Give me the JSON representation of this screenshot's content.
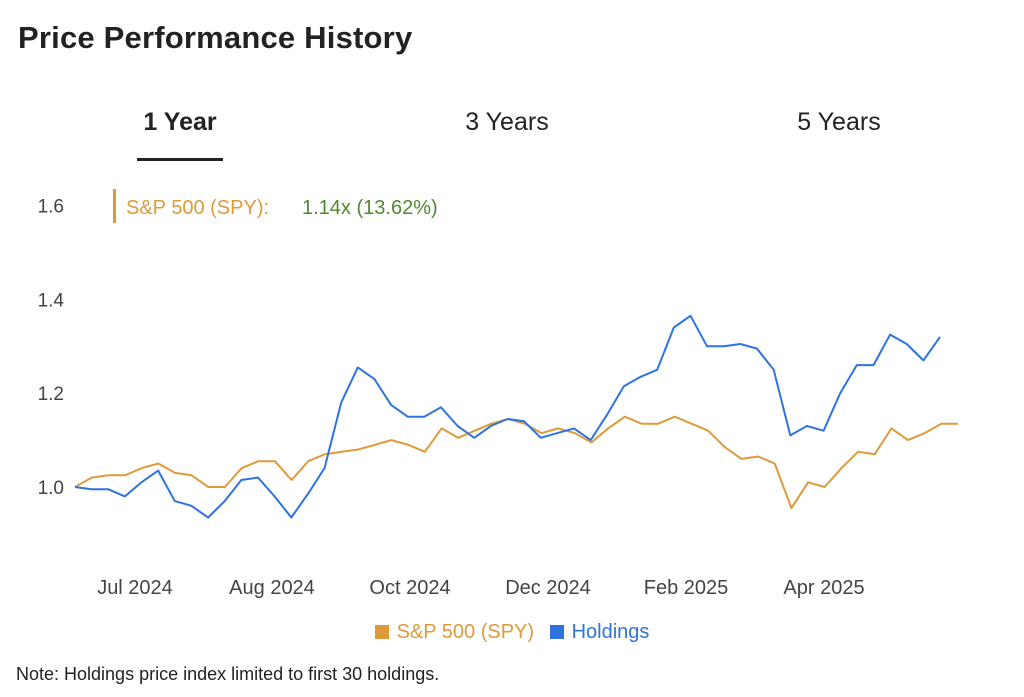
{
  "page": {
    "title": "Price Performance History"
  },
  "tabs": [
    {
      "label": "1 Year",
      "active": true
    },
    {
      "label": "3 Years",
      "active": false
    },
    {
      "label": "5 Years",
      "active": false
    }
  ],
  "annotation": {
    "series_label": "S&P 500 (SPY):",
    "value_text": "1.14x (13.62%)",
    "label_color": "#de9a3b",
    "value_color": "#4f8a2f"
  },
  "legend": [
    {
      "label": "S&P 500 (SPY)",
      "color": "#de9a3b"
    },
    {
      "label": "Holdings",
      "color": "#2f73e0"
    }
  ],
  "note": "Note: Holdings price index limited to first 30 holdings.",
  "chart_data": {
    "type": "line",
    "yticks": [
      "1.0",
      "1.2",
      "1.4",
      "1.6"
    ],
    "ylim": [
      0.9,
      1.62
    ],
    "xticks": [
      "Jul 2024",
      "Aug 2024",
      "Oct 2024",
      "Dec 2024",
      "Feb 2025",
      "Apr 2025"
    ],
    "grid": false,
    "legend_position": "bottom",
    "series": [
      {
        "name": "S&P 500 (SPY)",
        "color": "#de9a3b",
        "values": [
          1.0,
          1.02,
          1.025,
          1.025,
          1.04,
          1.05,
          1.03,
          1.025,
          1.0,
          1.0,
          1.04,
          1.055,
          1.055,
          1.015,
          1.055,
          1.07,
          1.075,
          1.08,
          1.09,
          1.1,
          1.09,
          1.075,
          1.125,
          1.105,
          1.12,
          1.135,
          1.145,
          1.135,
          1.115,
          1.125,
          1.115,
          1.095,
          1.125,
          1.15,
          1.135,
          1.135,
          1.15,
          1.135,
          1.12,
          1.085,
          1.06,
          1.065,
          1.05,
          0.955,
          1.01,
          1.0,
          1.04,
          1.075,
          1.07,
          1.125,
          1.1,
          1.115,
          1.135,
          1.135
        ]
      },
      {
        "name": "Holdings",
        "color": "#2f73e0",
        "values": [
          1.0,
          0.995,
          0.995,
          0.98,
          1.01,
          1.035,
          0.97,
          0.96,
          0.935,
          0.97,
          1.015,
          1.02,
          0.98,
          0.935,
          0.985,
          1.04,
          1.18,
          1.255,
          1.23,
          1.175,
          1.15,
          1.15,
          1.17,
          1.13,
          1.105,
          1.13,
          1.145,
          1.14,
          1.105,
          1.115,
          1.125,
          1.1,
          1.155,
          1.215,
          1.235,
          1.25,
          1.34,
          1.365,
          1.3,
          1.3,
          1.305,
          1.295,
          1.25,
          1.11,
          1.13,
          1.12,
          1.2,
          1.26,
          1.26,
          1.325,
          1.305,
          1.27,
          1.32
        ]
      }
    ]
  }
}
